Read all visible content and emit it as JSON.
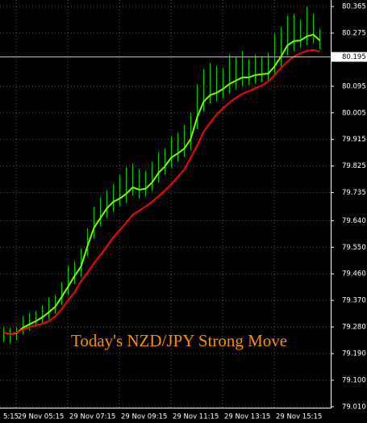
{
  "chart_data": {
    "type": "ohlc",
    "annotation": "Today's NZD/JPY Strong Move",
    "categories": [
      "5:15",
      null,
      "29 Nov 05:15",
      null,
      null,
      null,
      null,
      null,
      null,
      null,
      "29 Nov 07:15",
      null,
      null,
      null,
      null,
      null,
      null,
      null,
      "29 Nov 09:15",
      null,
      null,
      null,
      null,
      null,
      null,
      null,
      "29 Nov 11:15",
      null,
      null,
      null,
      null,
      null,
      null,
      null,
      "29 Nov 13:15",
      null,
      null,
      null,
      null,
      null,
      null,
      null,
      "29 Nov 15:15",
      null,
      null,
      null,
      null,
      null,
      null,
      null
    ],
    "bar_color": "#00c800",
    "high": [
      79.281,
      79.276,
      79.279,
      79.318,
      79.329,
      79.335,
      79.353,
      79.38,
      79.389,
      79.432,
      79.487,
      79.503,
      79.545,
      79.614,
      79.686,
      79.719,
      79.742,
      79.764,
      79.795,
      79.821,
      79.833,
      79.815,
      79.808,
      79.839,
      79.872,
      79.884,
      79.924,
      79.938,
      79.964,
      80.007,
      80.101,
      80.153,
      80.175,
      80.163,
      80.156,
      80.203,
      80.194,
      80.215,
      80.185,
      80.203,
      80.196,
      80.208,
      80.273,
      80.296,
      80.334,
      80.338,
      80.32,
      80.364,
      80.34,
      80.29
    ],
    "low": [
      79.23,
      79.225,
      79.235,
      79.255,
      79.268,
      79.28,
      79.29,
      79.305,
      79.325,
      79.355,
      79.39,
      79.425,
      79.45,
      79.52,
      79.58,
      79.62,
      79.65,
      79.67,
      79.69,
      79.7,
      79.725,
      79.715,
      79.72,
      79.74,
      79.77,
      79.795,
      79.82,
      79.84,
      79.855,
      79.88,
      79.95,
      80.01,
      80.035,
      80.045,
      80.055,
      80.07,
      80.085,
      80.095,
      80.1,
      80.105,
      80.11,
      80.115,
      80.135,
      80.16,
      80.2,
      80.215,
      80.225,
      80.235,
      80.24,
      80.22
    ],
    "series": [
      {
        "color": "#7cfc00",
        "values": [
          79.261,
          79.256,
          79.259,
          79.278,
          79.289,
          79.3,
          79.313,
          79.33,
          79.349,
          79.382,
          79.417,
          79.453,
          79.485,
          79.554,
          79.616,
          79.649,
          79.682,
          79.704,
          79.715,
          79.731,
          79.753,
          79.745,
          79.748,
          79.769,
          79.802,
          79.824,
          79.854,
          79.868,
          79.884,
          79.917,
          79.991,
          80.043,
          80.065,
          80.073,
          80.086,
          80.103,
          80.114,
          80.125,
          80.125,
          80.133,
          80.136,
          80.138,
          80.163,
          80.196,
          80.234,
          80.248,
          80.25,
          80.264,
          80.27,
          80.25
        ]
      },
      {
        "color": "#ff0000",
        "values": [
          79.261,
          79.256,
          79.261,
          79.272,
          79.28,
          79.286,
          79.291,
          79.3,
          79.316,
          79.341,
          79.371,
          79.398,
          79.436,
          79.464,
          79.496,
          79.524,
          79.554,
          79.584,
          79.608,
          79.633,
          79.66,
          79.674,
          79.688,
          79.704,
          79.723,
          79.742,
          79.764,
          79.789,
          79.813,
          79.854,
          79.895,
          79.942,
          79.972,
          79.999,
          80.021,
          80.04,
          80.056,
          80.07,
          80.078,
          80.089,
          80.097,
          80.111,
          80.133,
          80.158,
          80.179,
          80.196,
          80.207,
          80.215,
          80.218,
          80.212
        ]
      }
    ],
    "bid": 80.195,
    "ylim": [
      79.007,
      80.387
    ],
    "yticks": [
      80.365,
      80.275,
      80.095,
      80.005,
      79.915,
      79.825,
      79.735,
      {
        "value": 79.64,
        "label": "79.640"
      },
      {
        "value": 79.55,
        "label": "79.550"
      },
      {
        "value": 79.46,
        "label": "79.460"
      },
      {
        "value": 79.37,
        "label": "79.370"
      },
      {
        "value": 79.28,
        "label": "79.280"
      },
      {
        "value": 79.19,
        "label": "79.190"
      },
      {
        "value": 79.1,
        "label": "79.100"
      },
      {
        "value": 79.01,
        "label": "79.010"
      }
    ],
    "grid": true
  }
}
